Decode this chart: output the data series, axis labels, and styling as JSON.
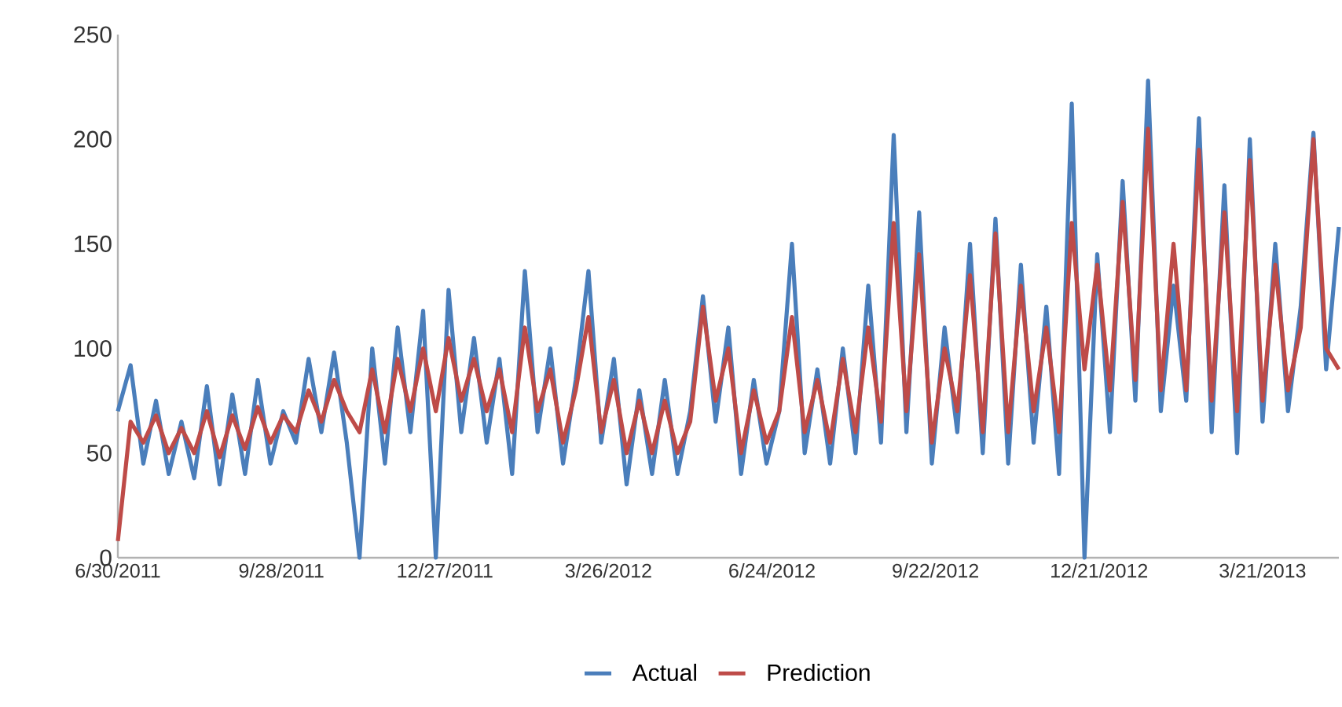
{
  "chart_data": {
    "type": "line",
    "x": [
      "2011-06-30",
      "2011-07-07",
      "2011-07-14",
      "2011-07-21",
      "2011-07-28",
      "2011-08-04",
      "2011-08-11",
      "2011-08-18",
      "2011-08-25",
      "2011-09-01",
      "2011-09-08",
      "2011-09-15",
      "2011-09-22",
      "2011-09-29",
      "2011-10-06",
      "2011-10-13",
      "2011-10-20",
      "2011-10-27",
      "2011-11-03",
      "2011-11-10",
      "2011-11-17",
      "2011-11-24",
      "2011-12-01",
      "2011-12-08",
      "2011-12-15",
      "2011-12-22",
      "2011-12-29",
      "2012-01-05",
      "2012-01-12",
      "2012-01-19",
      "2012-01-26",
      "2012-02-02",
      "2012-02-09",
      "2012-02-16",
      "2012-02-23",
      "2012-03-01",
      "2012-03-08",
      "2012-03-15",
      "2012-03-22",
      "2012-03-29",
      "2012-04-05",
      "2012-04-12",
      "2012-04-19",
      "2012-04-26",
      "2012-05-03",
      "2012-05-10",
      "2012-05-17",
      "2012-05-24",
      "2012-05-31",
      "2012-06-07",
      "2012-06-14",
      "2012-06-21",
      "2012-06-28",
      "2012-07-05",
      "2012-07-12",
      "2012-07-19",
      "2012-07-26",
      "2012-08-02",
      "2012-08-09",
      "2012-08-16",
      "2012-08-23",
      "2012-08-30",
      "2012-09-06",
      "2012-09-13",
      "2012-09-20",
      "2012-09-27",
      "2012-10-04",
      "2012-10-11",
      "2012-10-18",
      "2012-10-25",
      "2012-11-01",
      "2012-11-08",
      "2012-11-15",
      "2012-11-22",
      "2012-11-29",
      "2012-12-06",
      "2012-12-13",
      "2012-12-20",
      "2012-12-27",
      "2013-01-03",
      "2013-01-10",
      "2013-01-17",
      "2013-01-24",
      "2013-01-31",
      "2013-02-07",
      "2013-02-14",
      "2013-02-21",
      "2013-02-28",
      "2013-03-07",
      "2013-03-14",
      "2013-03-21",
      "2013-03-28",
      "2013-04-04",
      "2013-04-11",
      "2013-04-18",
      "2013-04-25",
      "2013-05-02"
    ],
    "series": [
      {
        "name": "Actual",
        "color": "#4a7ebb",
        "values": [
          70,
          92,
          45,
          75,
          40,
          65,
          38,
          82,
          35,
          78,
          40,
          85,
          45,
          70,
          55,
          95,
          60,
          98,
          55,
          0,
          100,
          45,
          110,
          60,
          118,
          0,
          128,
          60,
          105,
          55,
          95,
          40,
          137,
          60,
          100,
          45,
          85,
          137,
          55,
          95,
          35,
          80,
          40,
          85,
          40,
          70,
          125,
          65,
          110,
          40,
          85,
          45,
          70,
          150,
          50,
          90,
          45,
          100,
          50,
          130,
          55,
          202,
          60,
          165,
          45,
          110,
          60,
          150,
          50,
          162,
          45,
          140,
          55,
          120,
          40,
          217,
          0,
          145,
          60,
          180,
          75,
          228,
          70,
          130,
          75,
          210,
          60,
          178,
          50,
          200,
          65,
          150,
          70,
          120,
          203,
          90,
          158
        ]
      },
      {
        "name": "Prediction",
        "color": "#be4b48",
        "values": [
          8,
          65,
          55,
          68,
          50,
          62,
          50,
          70,
          48,
          68,
          52,
          72,
          55,
          68,
          60,
          80,
          65,
          85,
          70,
          60,
          90,
          60,
          95,
          70,
          100,
          70,
          105,
          75,
          95,
          70,
          90,
          60,
          110,
          70,
          90,
          55,
          80,
          115,
          60,
          85,
          50,
          75,
          50,
          75,
          50,
          65,
          120,
          75,
          100,
          50,
          80,
          55,
          70,
          115,
          60,
          85,
          55,
          95,
          60,
          110,
          65,
          160,
          70,
          145,
          55,
          100,
          70,
          135,
          60,
          155,
          60,
          130,
          70,
          110,
          60,
          160,
          90,
          140,
          80,
          170,
          85,
          205,
          80,
          150,
          80,
          195,
          75,
          165,
          70,
          190,
          75,
          140,
          80,
          110,
          200,
          100,
          90
        ]
      }
    ],
    "xlim": [
      "2011-06-30",
      "2013-05-02"
    ],
    "xticks": [
      {
        "value": "2011-06-30",
        "label": "6/30/2011"
      },
      {
        "value": "2011-09-28",
        "label": "9/28/2011"
      },
      {
        "value": "2011-12-27",
        "label": "12/27/2011"
      },
      {
        "value": "2012-03-26",
        "label": "3/26/2012"
      },
      {
        "value": "2012-06-24",
        "label": "6/24/2012"
      },
      {
        "value": "2012-09-22",
        "label": "9/22/2012"
      },
      {
        "value": "2012-12-21",
        "label": "12/21/2012"
      },
      {
        "value": "2013-03-21",
        "label": "3/21/2013"
      }
    ],
    "ylim": [
      0,
      250
    ],
    "yticks": [
      0,
      50,
      100,
      150,
      200,
      250
    ],
    "legend": "bottom",
    "grid": false,
    "marker": "none",
    "line_style": "solid"
  }
}
